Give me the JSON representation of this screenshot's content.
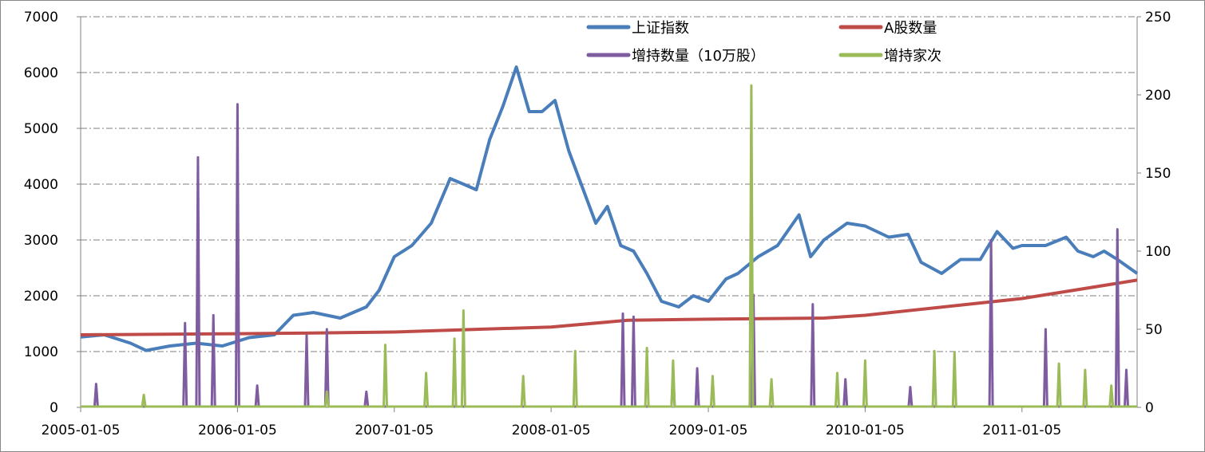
{
  "chart_data": {
    "type": "line",
    "title": "",
    "xlabel": "",
    "ylabel": "",
    "x_tick_labels": [
      "2005-01-05",
      "2006-01-05",
      "2007-01-05",
      "2008-01-05",
      "2009-01-05",
      "2010-01-05",
      "2011-01-05"
    ],
    "x_range": [
      "2005-01-05",
      "2011-09-30"
    ],
    "y_left": {
      "range": [
        0,
        7000
      ],
      "ticks": [
        0,
        1000,
        2000,
        3000,
        4000,
        5000,
        6000,
        7000
      ]
    },
    "y_right": {
      "range": [
        0,
        250
      ],
      "ticks": [
        0,
        50,
        100,
        150,
        200,
        250
      ]
    },
    "grid": "horizontal dash-dot",
    "legend_position": "top",
    "legend": [
      "上证指数",
      "A股数量",
      "增持数量（10万股）",
      "增持家次"
    ],
    "series": [
      {
        "name": "上证指数",
        "axis": "left",
        "color": "#4a7ebb",
        "x": [
          "2005-01-05",
          "2005-03-01",
          "2005-05-01",
          "2005-06-06",
          "2005-08-01",
          "2005-10-01",
          "2005-12-01",
          "2006-02-01",
          "2006-04-01",
          "2006-05-15",
          "2006-07-01",
          "2006-09-01",
          "2006-11-01",
          "2006-12-01",
          "2007-01-05",
          "2007-02-15",
          "2007-04-01",
          "2007-05-15",
          "2007-06-15",
          "2007-07-15",
          "2007-08-15",
          "2007-09-15",
          "2007-10-16",
          "2007-11-15",
          "2007-12-15",
          "2008-01-14",
          "2008-02-15",
          "2008-03-15",
          "2008-04-18",
          "2008-05-15",
          "2008-06-15",
          "2008-07-15",
          "2008-08-15",
          "2008-09-18",
          "2008-10-28",
          "2008-12-01",
          "2009-01-05",
          "2009-02-15",
          "2009-03-15",
          "2009-05-01",
          "2009-06-15",
          "2009-08-04",
          "2009-08-31",
          "2009-10-01",
          "2009-11-24",
          "2010-01-05",
          "2010-03-01",
          "2010-04-15",
          "2010-05-15",
          "2010-07-02",
          "2010-08-15",
          "2010-09-30",
          "2010-11-08",
          "2010-12-15",
          "2011-01-05",
          "2011-03-01",
          "2011-04-18",
          "2011-05-15",
          "2011-06-20",
          "2011-07-15",
          "2011-08-15",
          "2011-09-30"
        ],
        "values": [
          1260,
          1300,
          1150,
          1020,
          1100,
          1150,
          1100,
          1250,
          1300,
          1650,
          1700,
          1600,
          1800,
          2100,
          2700,
          2900,
          3300,
          4100,
          4000,
          3900,
          4800,
          5400,
          6100,
          5300,
          5300,
          5500,
          4600,
          4000,
          3300,
          3600,
          2900,
          2800,
          2400,
          1900,
          1800,
          2000,
          1900,
          2300,
          2400,
          2700,
          2900,
          3450,
          2700,
          3000,
          3300,
          3250,
          3050,
          3100,
          2600,
          2400,
          2650,
          2650,
          3150,
          2850,
          2900,
          2900,
          3050,
          2800,
          2700,
          2800,
          2650,
          2400
        ]
      },
      {
        "name": "A股数量",
        "axis": "left",
        "color": "#be4b48",
        "x": [
          "2005-01-05",
          "2006-01-05",
          "2006-06-01",
          "2007-01-05",
          "2008-01-05",
          "2008-07-01",
          "2009-01-05",
          "2009-10-01",
          "2010-01-05",
          "2011-01-05",
          "2011-09-30"
        ],
        "values": [
          1300,
          1320,
          1330,
          1350,
          1440,
          1560,
          1580,
          1600,
          1650,
          1950,
          2280
        ]
      },
      {
        "name": "增持数量（10万股）",
        "axis": "right",
        "color": "#7f5ca0",
        "x": [
          "2005-02-10",
          "2005-09-05",
          "2005-10-05",
          "2005-11-10",
          "2006-01-05",
          "2006-02-20",
          "2006-06-15",
          "2006-08-01",
          "2006-11-01",
          "2008-06-20",
          "2008-07-15",
          "2008-10-15",
          "2008-12-10",
          "2009-04-20",
          "2009-09-05",
          "2009-11-20",
          "2010-04-20",
          "2010-10-25",
          "2011-03-01",
          "2011-08-15",
          "2011-09-05"
        ],
        "values": [
          15,
          54,
          160,
          59,
          194,
          14,
          46,
          50,
          10,
          60,
          58,
          23,
          25,
          72,
          66,
          18,
          13,
          107,
          50,
          114,
          24
        ]
      },
      {
        "name": "增持家次",
        "axis": "right",
        "color": "#9bbb59",
        "x": [
          "2005-06-01",
          "2006-08-01",
          "2006-12-15",
          "2007-03-20",
          "2007-05-25",
          "2007-06-15",
          "2007-11-01",
          "2008-03-01",
          "2008-08-15",
          "2008-10-15",
          "2009-01-15",
          "2009-04-15",
          "2009-06-01",
          "2009-11-01",
          "2010-01-05",
          "2010-06-15",
          "2010-08-01",
          "2011-04-01",
          "2011-06-01",
          "2011-08-01"
        ],
        "values": [
          8,
          10,
          40,
          22,
          44,
          62,
          20,
          36,
          38,
          30,
          20,
          206,
          18,
          22,
          30,
          36,
          35,
          28,
          24,
          14
        ]
      }
    ]
  }
}
